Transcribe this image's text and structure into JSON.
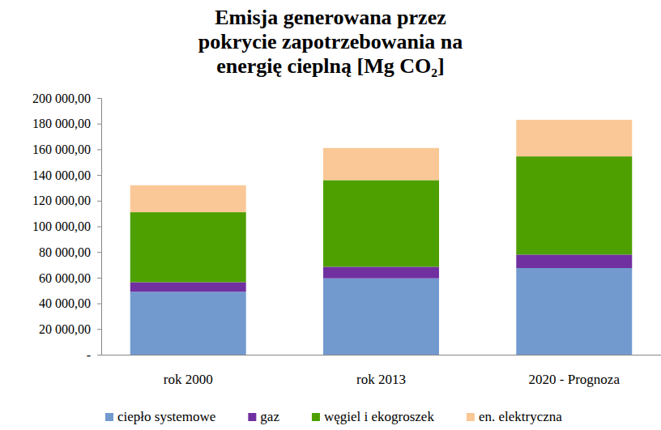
{
  "chart_data": {
    "type": "bar",
    "stacked": true,
    "title": "Emisja generowana przez pokrycie zapotrzebowania na energię cieplną [Mg CO₂]",
    "categories": [
      "rok 2000",
      "rok 2013",
      "2020 - Prognoza"
    ],
    "series": [
      {
        "name": "ciepło systemowe",
        "color": "#729acf",
        "values": [
          49000,
          59500,
          67500
        ]
      },
      {
        "name": "gaz",
        "color": "#7030a0",
        "values": [
          7500,
          9000,
          10500
        ]
      },
      {
        "name": "węgiel i ekogroszek",
        "color": "#4ea000",
        "values": [
          54500,
          67500,
          76500
        ]
      },
      {
        "name": "en. elektryczna",
        "color": "#fac896",
        "values": [
          21000,
          25000,
          28500
        ]
      }
    ],
    "ylim": [
      0,
      200000
    ],
    "yticks": [
      {
        "value": 0,
        "label": "-"
      },
      {
        "value": 20000,
        "label": "20 000,00"
      },
      {
        "value": 40000,
        "label": "40 000,00"
      },
      {
        "value": 60000,
        "label": "60 000,00"
      },
      {
        "value": 80000,
        "label": "80 000,00"
      },
      {
        "value": 100000,
        "label": "100 000,00"
      },
      {
        "value": 120000,
        "label": "120 000,00"
      },
      {
        "value": 140000,
        "label": "140 000,00"
      },
      {
        "value": 160000,
        "label": "160 000,00"
      },
      {
        "value": 180000,
        "label": "180 000,00"
      },
      {
        "value": 200000,
        "label": "200 000,00"
      }
    ],
    "grid": false,
    "legend": "bottom",
    "data_labels": false
  }
}
